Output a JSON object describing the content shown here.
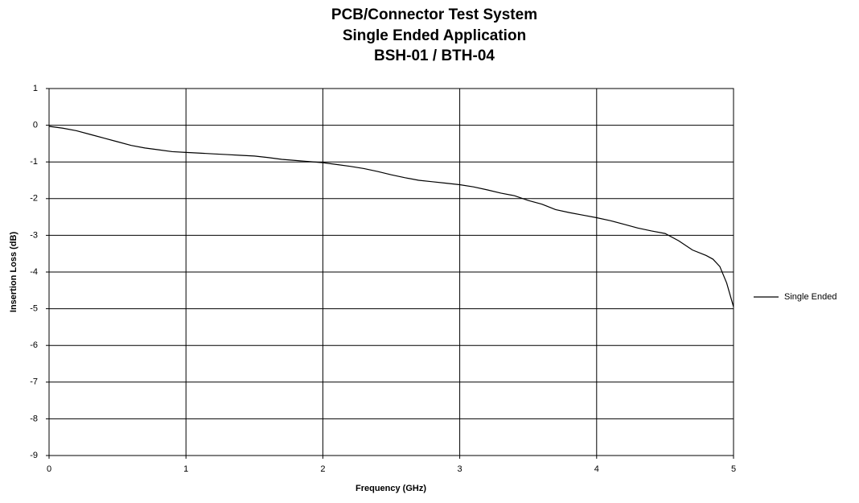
{
  "chart_data": {
    "type": "line",
    "title": [
      "PCB/Connector Test System",
      "Single Ended Application",
      "BSH-01 / BTH-04"
    ],
    "xlabel": "Frequency (GHz)",
    "ylabel": "Insertion Loss (dB)",
    "x": [
      0,
      0.1,
      0.2,
      0.3,
      0.4,
      0.5,
      0.6,
      0.7,
      0.8,
      0.9,
      1.0,
      1.1,
      1.2,
      1.3,
      1.4,
      1.5,
      1.6,
      1.7,
      1.8,
      1.9,
      2.0,
      2.1,
      2.2,
      2.3,
      2.4,
      2.5,
      2.6,
      2.7,
      2.8,
      2.9,
      3.0,
      3.1,
      3.2,
      3.3,
      3.4,
      3.5,
      3.6,
      3.7,
      3.8,
      3.9,
      4.0,
      4.1,
      4.2,
      4.3,
      4.4,
      4.5,
      4.6,
      4.7,
      4.8,
      4.85,
      4.9,
      4.95,
      5.0
    ],
    "series": [
      {
        "name": "Single Ended",
        "color": "#000000",
        "values": [
          -0.03,
          -0.08,
          -0.15,
          -0.25,
          -0.35,
          -0.45,
          -0.55,
          -0.62,
          -0.67,
          -0.72,
          -0.74,
          -0.76,
          -0.78,
          -0.8,
          -0.82,
          -0.84,
          -0.88,
          -0.93,
          -0.96,
          -0.99,
          -1.02,
          -1.07,
          -1.12,
          -1.18,
          -1.26,
          -1.35,
          -1.43,
          -1.5,
          -1.54,
          -1.58,
          -1.62,
          -1.68,
          -1.76,
          -1.85,
          -1.92,
          -2.05,
          -2.15,
          -2.3,
          -2.38,
          -2.45,
          -2.52,
          -2.6,
          -2.7,
          -2.8,
          -2.88,
          -2.95,
          -3.15,
          -3.4,
          -3.55,
          -3.65,
          -3.85,
          -4.3,
          -4.95
        ]
      }
    ],
    "xlim": [
      0,
      5
    ],
    "xticks": [
      0,
      1,
      2,
      3,
      4,
      5
    ],
    "ylim": [
      -9,
      1
    ],
    "yticks": [
      -9,
      -8,
      -7,
      -6,
      -5,
      -4,
      -3,
      -2,
      -1,
      0,
      1
    ],
    "grid": true,
    "legend": "right"
  }
}
